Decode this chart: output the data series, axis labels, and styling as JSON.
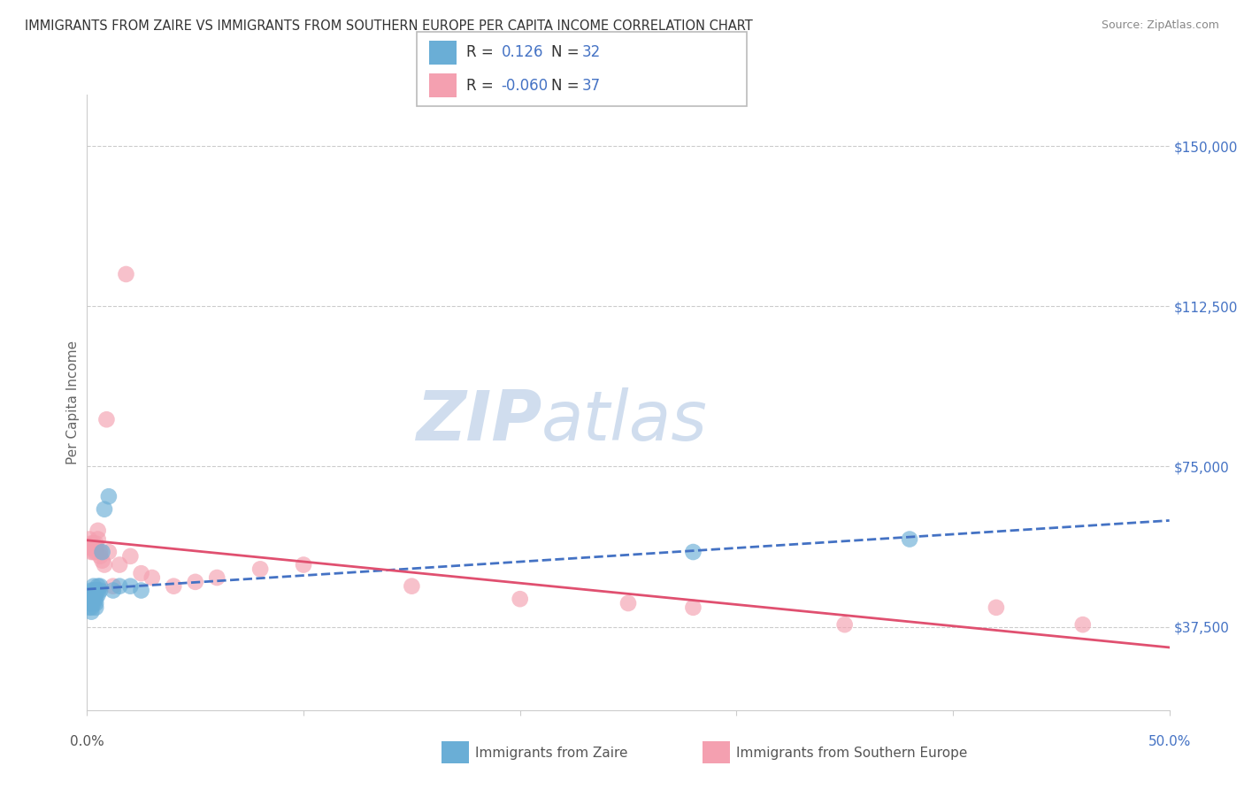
{
  "title": "IMMIGRANTS FROM ZAIRE VS IMMIGRANTS FROM SOUTHERN EUROPE PER CAPITA INCOME CORRELATION CHART",
  "source": "Source: ZipAtlas.com",
  "ylabel": "Per Capita Income",
  "yticks": [
    37500,
    75000,
    112500,
    150000
  ],
  "ytick_labels": [
    "$37,500",
    "$75,000",
    "$112,500",
    "$150,000"
  ],
  "xlim": [
    0.0,
    0.5
  ],
  "ylim": [
    18000,
    162000
  ],
  "color_zaire": "#6aaed6",
  "color_europe": "#f4a0b0",
  "color_zaire_line": "#4472c4",
  "color_europe_line": "#e05070",
  "background_color": "#ffffff",
  "grid_color": "#cccccc",
  "zaire_x": [
    0.001,
    0.001,
    0.001,
    0.002,
    0.002,
    0.002,
    0.002,
    0.002,
    0.003,
    0.003,
    0.003,
    0.003,
    0.003,
    0.004,
    0.004,
    0.004,
    0.004,
    0.004,
    0.005,
    0.005,
    0.005,
    0.006,
    0.006,
    0.007,
    0.008,
    0.01,
    0.012,
    0.015,
    0.02,
    0.025,
    0.28,
    0.38
  ],
  "zaire_y": [
    44000,
    43000,
    42000,
    46000,
    44000,
    43000,
    42000,
    41000,
    47000,
    46000,
    45000,
    44000,
    43000,
    46000,
    45000,
    44000,
    43000,
    42000,
    47000,
    46000,
    45000,
    47000,
    46000,
    55000,
    65000,
    68000,
    46000,
    47000,
    47000,
    46000,
    55000,
    58000
  ],
  "europe_x": [
    0.001,
    0.001,
    0.002,
    0.002,
    0.002,
    0.003,
    0.003,
    0.003,
    0.004,
    0.004,
    0.004,
    0.005,
    0.005,
    0.006,
    0.006,
    0.007,
    0.008,
    0.009,
    0.01,
    0.012,
    0.015,
    0.018,
    0.02,
    0.025,
    0.03,
    0.04,
    0.05,
    0.06,
    0.08,
    0.1,
    0.15,
    0.2,
    0.25,
    0.28,
    0.35,
    0.42,
    0.46
  ],
  "europe_y": [
    56000,
    58000,
    57000,
    56000,
    55000,
    57000,
    56000,
    55000,
    57000,
    56000,
    55000,
    60000,
    58000,
    55000,
    54000,
    53000,
    52000,
    86000,
    55000,
    47000,
    52000,
    120000,
    54000,
    50000,
    49000,
    47000,
    48000,
    49000,
    51000,
    52000,
    47000,
    44000,
    43000,
    42000,
    38000,
    42000,
    38000
  ]
}
